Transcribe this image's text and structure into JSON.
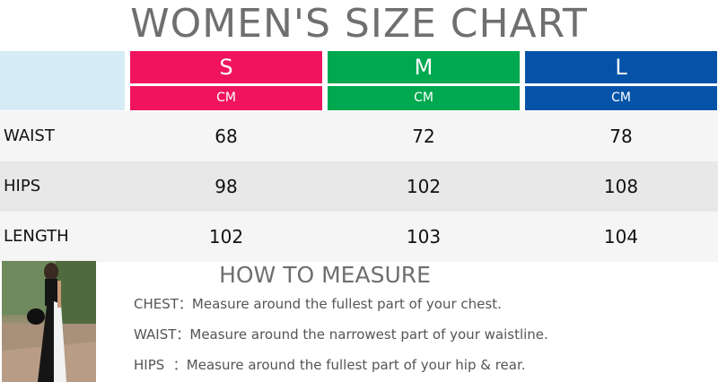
{
  "title": "WOMEN'S SIZE CHART",
  "colors": {
    "S": "#f0145f",
    "M": "#00a84f",
    "L": "#0553a8",
    "header_blank": "#d6ecf5"
  },
  "sizes": [
    {
      "label": "S",
      "unit": "CM"
    },
    {
      "label": "M",
      "unit": "CM"
    },
    {
      "label": "L",
      "unit": "CM"
    }
  ],
  "rows": [
    {
      "label": "WAIST",
      "values": [
        "68",
        "72",
        "78"
      ]
    },
    {
      "label": "HIPS",
      "values": [
        "98",
        "102",
        "108"
      ]
    },
    {
      "label": "LENGTH",
      "values": [
        "102",
        "103",
        "104"
      ]
    }
  ],
  "measure": {
    "title": "HOW TO MEASURE",
    "lines": [
      "CHEST：Measure around the fullest part of your chest.",
      "WAIST：Measure around the narrowest part of your waistline.",
      "HIPS  ：Measure around the fullest part of your hip & rear."
    ]
  }
}
